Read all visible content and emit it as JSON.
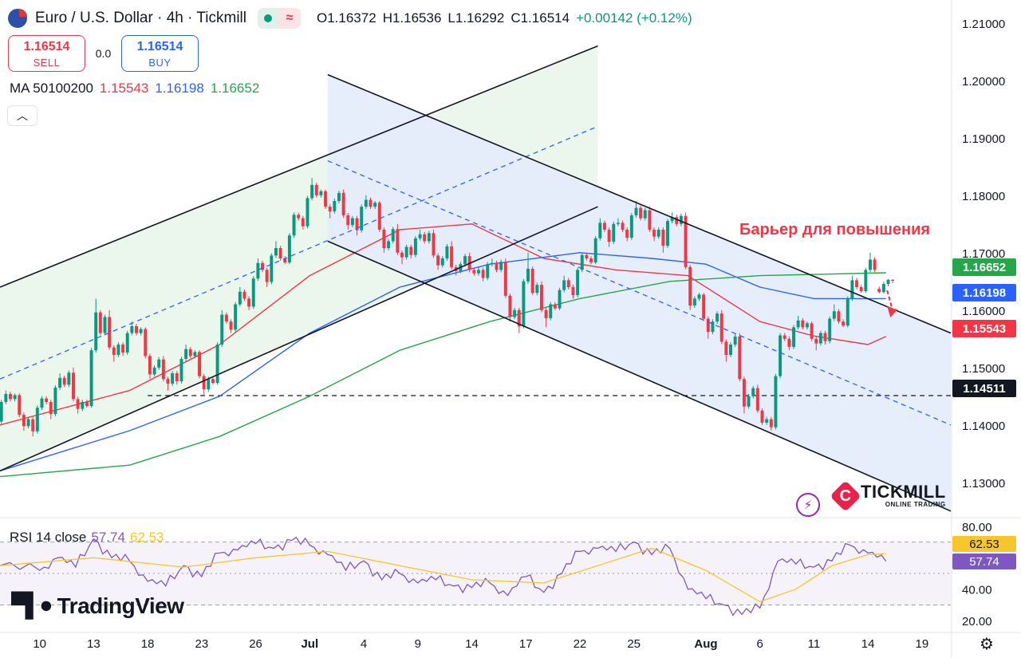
{
  "header": {
    "symbol": "Euro / U.S. Dollar · 4h · Tickmill",
    "ohlc": {
      "open": "O1.16372",
      "high": "H1.16536",
      "low": "L1.16292",
      "close": "C1.16514",
      "change": "+0.00142 (+0.12%)"
    }
  },
  "trade": {
    "sell_price": "1.16514",
    "sell_label": "SELL",
    "spread": "0.0",
    "buy_price": "1.16514",
    "buy_label": "BUY"
  },
  "ma_legend": {
    "label": "MA 50100200",
    "v1": "1.15543",
    "v2": "1.16198",
    "v3": "1.16652"
  },
  "annotation": "Барьер для повышения",
  "rsi_legend": {
    "label": "RSI 14 close",
    "v1": "57.74",
    "v2": "62.53"
  },
  "branding": {
    "tradingview": "TradingView",
    "tickmill": "TICKMILL",
    "tickmill_sub": "ONLINE TRADING"
  },
  "price_tags": {
    "ma200": "1.16652",
    "ma100": "1.16198",
    "ma50": "1.15543",
    "level": "1.14511"
  },
  "rsi_tags": {
    "signal": "62.53",
    "rsi": "57.74"
  },
  "colors": {
    "up": "#089981",
    "down": "#f23645",
    "ma50": "#f23645",
    "ma100": "#2962ff",
    "ma200": "#26a64a",
    "rsi": "#7e57c2",
    "rsi_ma": "#f7c62c",
    "annotation": "#f23645"
  },
  "icons": [
    "status-dot-icon",
    "wave-icon",
    "chevron-up-icon",
    "lightning-icon",
    "gear-icon",
    "arrow-down-icon"
  ],
  "chart_data": {
    "type": "candlestick",
    "price_axis": {
      "min": 1.124,
      "max": 1.214,
      "ticks": [
        "1.21000",
        "1.20000",
        "1.19000",
        "1.18000",
        "1.17000",
        "1.16000",
        "1.15000",
        "1.14000",
        "1.13000"
      ],
      "tick_values": [
        1.21,
        1.2,
        1.19,
        1.18,
        1.17,
        1.16,
        1.15,
        1.14,
        1.13
      ]
    },
    "time_axis": {
      "labels": [
        "10",
        "13",
        "18",
        "23",
        "26",
        "Jul",
        "4",
        "9",
        "14",
        "17",
        "22",
        "25",
        "Aug",
        "6",
        "11",
        "14",
        "19"
      ],
      "label_days": [
        0,
        3,
        6,
        9,
        12,
        15,
        18,
        21,
        24,
        27,
        30,
        33,
        37,
        40,
        43,
        46,
        49
      ],
      "day_range": [
        -2.2,
        50.6
      ]
    },
    "candles_daily_approx": [
      {
        "day": -2,
        "o": 1.142,
        "h": 1.146,
        "l": 1.14,
        "c": 1.1445
      },
      {
        "day": -1,
        "o": 1.1445,
        "h": 1.1455,
        "l": 1.139,
        "c": 1.141
      },
      {
        "day": 0,
        "o": 1.141,
        "h": 1.145,
        "l": 1.138,
        "c": 1.144
      },
      {
        "day": 1,
        "o": 1.144,
        "h": 1.149,
        "l": 1.141,
        "c": 1.147
      },
      {
        "day": 2,
        "o": 1.147,
        "h": 1.15,
        "l": 1.142,
        "c": 1.144
      },
      {
        "day": 3,
        "o": 1.144,
        "h": 1.162,
        "l": 1.143,
        "c": 1.156
      },
      {
        "day": 4,
        "o": 1.156,
        "h": 1.16,
        "l": 1.151,
        "c": 1.154
      },
      {
        "day": 5,
        "o": 1.154,
        "h": 1.158,
        "l": 1.152,
        "c": 1.156
      },
      {
        "day": 6,
        "o": 1.156,
        "h": 1.157,
        "l": 1.148,
        "c": 1.15
      },
      {
        "day": 7,
        "o": 1.15,
        "h": 1.152,
        "l": 1.146,
        "c": 1.149
      },
      {
        "day": 8,
        "o": 1.149,
        "h": 1.154,
        "l": 1.147,
        "c": 1.152
      },
      {
        "day": 9,
        "o": 1.152,
        "h": 1.153,
        "l": 1.145,
        "c": 1.148
      },
      {
        "day": 10,
        "o": 1.148,
        "h": 1.16,
        "l": 1.147,
        "c": 1.158
      },
      {
        "day": 11,
        "o": 1.158,
        "h": 1.164,
        "l": 1.156,
        "c": 1.162
      },
      {
        "day": 12,
        "o": 1.162,
        "h": 1.169,
        "l": 1.16,
        "c": 1.167
      },
      {
        "day": 13,
        "o": 1.167,
        "h": 1.172,
        "l": 1.164,
        "c": 1.169
      },
      {
        "day": 14,
        "o": 1.169,
        "h": 1.177,
        "l": 1.168,
        "c": 1.176
      },
      {
        "day": 15,
        "o": 1.176,
        "h": 1.183,
        "l": 1.174,
        "c": 1.18
      },
      {
        "day": 16,
        "o": 1.18,
        "h": 1.181,
        "l": 1.176,
        "c": 1.179
      },
      {
        "day": 17,
        "o": 1.179,
        "h": 1.181,
        "l": 1.174,
        "c": 1.176
      },
      {
        "day": 18,
        "o": 1.176,
        "h": 1.18,
        "l": 1.173,
        "c": 1.178
      },
      {
        "day": 19,
        "o": 1.178,
        "h": 1.179,
        "l": 1.17,
        "c": 1.172
      },
      {
        "day": 20,
        "o": 1.172,
        "h": 1.175,
        "l": 1.168,
        "c": 1.171
      },
      {
        "day": 21,
        "o": 1.171,
        "h": 1.174,
        "l": 1.169,
        "c": 1.172
      },
      {
        "day": 22,
        "o": 1.172,
        "h": 1.174,
        "l": 1.167,
        "c": 1.169
      },
      {
        "day": 23,
        "o": 1.169,
        "h": 1.172,
        "l": 1.166,
        "c": 1.168
      },
      {
        "day": 24,
        "o": 1.168,
        "h": 1.17,
        "l": 1.166,
        "c": 1.167
      },
      {
        "day": 25,
        "o": 1.167,
        "h": 1.169,
        "l": 1.165,
        "c": 1.167
      },
      {
        "day": 26,
        "o": 1.167,
        "h": 1.169,
        "l": 1.158,
        "c": 1.16
      },
      {
        "day": 27,
        "o": 1.16,
        "h": 1.17,
        "l": 1.156,
        "c": 1.163
      },
      {
        "day": 28,
        "o": 1.163,
        "h": 1.165,
        "l": 1.157,
        "c": 1.161
      },
      {
        "day": 29,
        "o": 1.161,
        "h": 1.166,
        "l": 1.16,
        "c": 1.164
      },
      {
        "day": 30,
        "o": 1.164,
        "h": 1.17,
        "l": 1.162,
        "c": 1.169
      },
      {
        "day": 31,
        "o": 1.169,
        "h": 1.176,
        "l": 1.168,
        "c": 1.174
      },
      {
        "day": 32,
        "o": 1.174,
        "h": 1.176,
        "l": 1.171,
        "c": 1.174
      },
      {
        "day": 33,
        "o": 1.174,
        "h": 1.179,
        "l": 1.172,
        "c": 1.176
      },
      {
        "day": 34,
        "o": 1.176,
        "h": 1.178,
        "l": 1.172,
        "c": 1.174
      },
      {
        "day": 35,
        "o": 1.174,
        "h": 1.177,
        "l": 1.17,
        "c": 1.175
      },
      {
        "day": 36,
        "o": 1.175,
        "h": 1.177,
        "l": 1.16,
        "c": 1.162
      },
      {
        "day": 37,
        "o": 1.162,
        "h": 1.163,
        "l": 1.155,
        "c": 1.158
      },
      {
        "day": 38,
        "o": 1.158,
        "h": 1.16,
        "l": 1.151,
        "c": 1.154
      },
      {
        "day": 39,
        "o": 1.154,
        "h": 1.156,
        "l": 1.142,
        "c": 1.145
      },
      {
        "day": 40,
        "o": 1.145,
        "h": 1.147,
        "l": 1.14,
        "c": 1.141
      },
      {
        "day": 41,
        "o": 1.141,
        "h": 1.156,
        "l": 1.139,
        "c": 1.155
      },
      {
        "day": 42,
        "o": 1.155,
        "h": 1.159,
        "l": 1.153,
        "c": 1.157
      },
      {
        "day": 43,
        "o": 1.157,
        "h": 1.158,
        "l": 1.153,
        "c": 1.156
      },
      {
        "day": 44,
        "o": 1.156,
        "h": 1.161,
        "l": 1.154,
        "c": 1.158
      },
      {
        "day": 45,
        "o": 1.158,
        "h": 1.166,
        "l": 1.157,
        "c": 1.164
      },
      {
        "day": 46,
        "o": 1.164,
        "h": 1.17,
        "l": 1.163,
        "c": 1.167
      },
      {
        "day": 47,
        "o": 1.1637,
        "h": 1.1654,
        "l": 1.1629,
        "c": 1.1651
      }
    ],
    "moving_averages": [
      {
        "name": "MA 50",
        "color": "#f23645",
        "points": [
          [
            -2.2,
            1.14
          ],
          [
            5,
            1.146
          ],
          [
            10,
            1.154
          ],
          [
            15,
            1.166
          ],
          [
            20,
            1.174
          ],
          [
            24,
            1.175
          ],
          [
            28,
            1.169
          ],
          [
            32,
            1.167
          ],
          [
            36,
            1.166
          ],
          [
            40,
            1.158
          ],
          [
            43,
            1.1555
          ],
          [
            46,
            1.154
          ],
          [
            47,
            1.1554
          ]
        ]
      },
      {
        "name": "MA 100",
        "color": "#2962ff",
        "points": [
          [
            -2.2,
            1.132
          ],
          [
            5,
            1.139
          ],
          [
            10,
            1.145
          ],
          [
            15,
            1.156
          ],
          [
            20,
            1.164
          ],
          [
            25,
            1.168
          ],
          [
            30,
            1.17
          ],
          [
            34,
            1.169
          ],
          [
            37,
            1.168
          ],
          [
            40,
            1.164
          ],
          [
            43,
            1.162
          ],
          [
            47,
            1.162
          ]
        ]
      },
      {
        "name": "MA 200",
        "color": "#26a64a",
        "points": [
          [
            -2.2,
            1.131
          ],
          [
            5,
            1.133
          ],
          [
            10,
            1.138
          ],
          [
            15,
            1.145
          ],
          [
            20,
            1.153
          ],
          [
            25,
            1.158
          ],
          [
            30,
            1.162
          ],
          [
            35,
            1.165
          ],
          [
            40,
            1.166
          ],
          [
            47,
            1.1665
          ]
        ]
      }
    ],
    "channels": [
      {
        "name": "ascending",
        "upper": [
          [
            -2.2,
            1.164
          ],
          [
            31,
            1.206
          ]
        ],
        "lower": [
          [
            -2.2,
            1.132
          ],
          [
            31,
            1.178
          ]
        ],
        "mid": [
          [
            -2.2,
            1.148
          ],
          [
            31,
            1.192
          ]
        ],
        "fill": "#e8f4ea",
        "from_day": -2.2,
        "to_day": 31
      },
      {
        "name": "descending",
        "upper": [
          [
            16,
            1.201
          ],
          [
            50.6,
            1.156
          ]
        ],
        "lower": [
          [
            16,
            1.172
          ],
          [
            50.6,
            1.125
          ]
        ],
        "mid": [
          [
            16,
            1.186
          ],
          [
            50.6,
            1.14
          ]
        ],
        "fill": "#e3ebfa",
        "from_day": 16,
        "to_day": 50.6
      }
    ],
    "horizontal_level": {
      "value": 1.14511,
      "from_day": 6,
      "style": "dashed"
    },
    "rsi": {
      "label": "RSI 14 close",
      "axis": {
        "min": 14,
        "max": 84,
        "ticks": [
          "80.00",
          "40.00",
          "20.00"
        ],
        "tick_values": [
          80,
          40,
          20
        ]
      },
      "band": [
        30,
        70
      ],
      "values": [
        [
          -2.2,
          55
        ],
        [
          0,
          52
        ],
        [
          1,
          60
        ],
        [
          2,
          54
        ],
        [
          3,
          72
        ],
        [
          4,
          60
        ],
        [
          5,
          58
        ],
        [
          6,
          45
        ],
        [
          7,
          42
        ],
        [
          8,
          55
        ],
        [
          9,
          48
        ],
        [
          10,
          63
        ],
        [
          11,
          65
        ],
        [
          12,
          69
        ],
        [
          13,
          66
        ],
        [
          14,
          71
        ],
        [
          15,
          68
        ],
        [
          16,
          62
        ],
        [
          17,
          52
        ],
        [
          18,
          58
        ],
        [
          19,
          46
        ],
        [
          20,
          50
        ],
        [
          21,
          44
        ],
        [
          22,
          46
        ],
        [
          23,
          42
        ],
        [
          24,
          41
        ],
        [
          25,
          44
        ],
        [
          26,
          36
        ],
        [
          27,
          48
        ],
        [
          28,
          38
        ],
        [
          29,
          50
        ],
        [
          30,
          64
        ],
        [
          31,
          66
        ],
        [
          32,
          64
        ],
        [
          33,
          70
        ],
        [
          34,
          62
        ],
        [
          35,
          66
        ],
        [
          36,
          40
        ],
        [
          37,
          34
        ],
        [
          38,
          30
        ],
        [
          39,
          24
        ],
        [
          40,
          28
        ],
        [
          41,
          58
        ],
        [
          42,
          56
        ],
        [
          43,
          54
        ],
        [
          44,
          58
        ],
        [
          45,
          68
        ],
        [
          46,
          63
        ],
        [
          47,
          57.74
        ]
      ],
      "ma": [
        [
          -2.2,
          55
        ],
        [
          3,
          60
        ],
        [
          8,
          54
        ],
        [
          12,
          60
        ],
        [
          16,
          64
        ],
        [
          20,
          55
        ],
        [
          24,
          46
        ],
        [
          28,
          44
        ],
        [
          31,
          55
        ],
        [
          34,
          66
        ],
        [
          37,
          52
        ],
        [
          40,
          32
        ],
        [
          42,
          40
        ],
        [
          44,
          55
        ],
        [
          46,
          62
        ],
        [
          47,
          62.53
        ]
      ]
    }
  }
}
